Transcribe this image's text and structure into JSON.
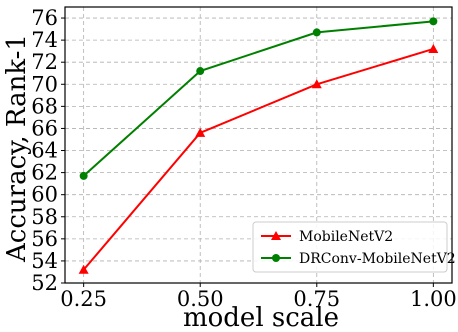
{
  "chart_data": {
    "type": "line",
    "x": [
      0.25,
      0.5,
      0.75,
      1.0
    ],
    "x_tick_labels": [
      "0.25",
      "0.50",
      "0.75",
      "1.00"
    ],
    "y_ticks": [
      52,
      54,
      56,
      58,
      60,
      62,
      64,
      66,
      68,
      70,
      72,
      74,
      76
    ],
    "xlabel": "model scale",
    "ylabel": "Accuracy, Rank-1",
    "xlim": [
      0.21,
      1.04
    ],
    "ylim": [
      52,
      77
    ],
    "grid": true,
    "legend_position": "bottom-right",
    "series": [
      {
        "name": "MobileNetV2",
        "color": "#ff0000",
        "marker": "triangle",
        "values": [
          53.2,
          65.6,
          70.0,
          73.2
        ]
      },
      {
        "name": "DRConv-MobileNetV2",
        "color": "#008000",
        "marker": "circle",
        "values": [
          61.7,
          71.2,
          74.7,
          75.7
        ]
      }
    ]
  }
}
